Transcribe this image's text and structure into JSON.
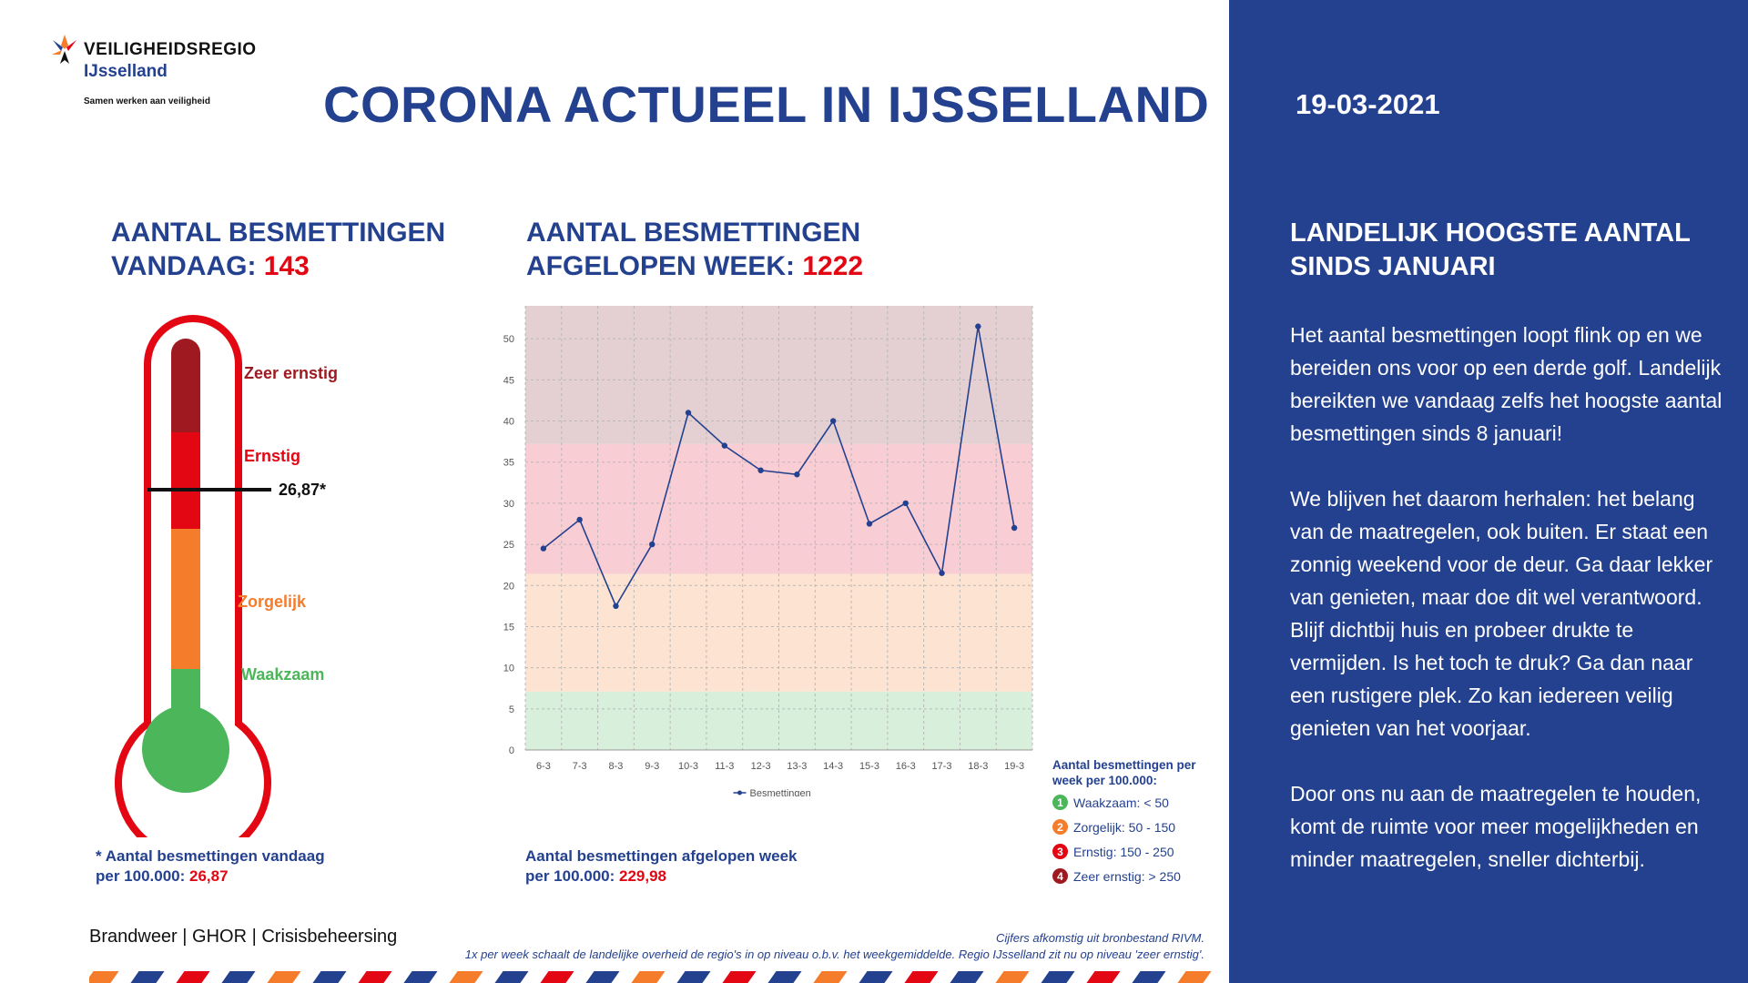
{
  "logo": {
    "title": "VEILIGHEIDSREGIO",
    "subtitle": "IJsselland",
    "tagline": "Samen werken aan veiligheid"
  },
  "page_title": "CORONA ACTUEEL IN IJSSELLAND",
  "today": {
    "heading_line1": "AANTAL BESMETTINGEN",
    "heading_line2_prefix": "VANDAAG: ",
    "value": "143"
  },
  "week": {
    "heading_line1": "AANTAL BESMETTINGEN",
    "heading_line2_prefix": "AFGELOPEN WEEK: ",
    "value": "1222"
  },
  "thermometer": {
    "levels": [
      "Zeer ernstig",
      "Ernstig",
      "Zorgelijk",
      "Waakzaam"
    ],
    "marker_label": "26,87*",
    "marker_value": 26.87,
    "colors": {
      "zeer_ernstig": "#9e1a20",
      "ernstig": "#e30613",
      "zorgelijk": "#f47c2a",
      "waakzaam": "#4cb65a"
    }
  },
  "today_note": {
    "line1": "* Aantal besmettingen vandaag",
    "line2_prefix": "per 100.000: ",
    "value": "26,87"
  },
  "week_note": {
    "line1": "Aantal besmettingen afgelopen week",
    "line2_prefix": "per 100.000: ",
    "value": "229,98"
  },
  "chart_data": {
    "type": "line",
    "categories": [
      "6-3",
      "7-3",
      "8-3",
      "9-3",
      "10-3",
      "11-3",
      "12-3",
      "13-3",
      "14-3",
      "15-3",
      "16-3",
      "17-3",
      "18-3",
      "19-3"
    ],
    "series": [
      {
        "name": "Besmettingen",
        "values": [
          24.5,
          28,
          17.5,
          25,
          41,
          37,
          34,
          33.5,
          40,
          27.5,
          30,
          21.5,
          51.5,
          27
        ]
      }
    ],
    "ylim": [
      0,
      54
    ],
    "yticks": [
      0,
      5,
      10,
      15,
      20,
      25,
      30,
      35,
      40,
      45,
      50
    ],
    "bands": [
      {
        "from": 0,
        "to": 7.1,
        "color": "#d8efdc"
      },
      {
        "from": 7.1,
        "to": 21.4,
        "color": "#fde3d1"
      },
      {
        "from": 21.4,
        "to": 37.2,
        "color": "#f9cdd4"
      },
      {
        "from": 37.2,
        "to": 54,
        "color": "#e4d0d3"
      }
    ],
    "line_color": "#24418f",
    "grid": true,
    "legend": "bottom"
  },
  "legend": {
    "title": "Aantal besmettingen per week per 100.000:",
    "items": [
      {
        "num": "1",
        "label": "Waakzaam: < 50",
        "color": "#4cb65a"
      },
      {
        "num": "2",
        "label": "Zorgelijk: 50 - 150",
        "color": "#f47c2a"
      },
      {
        "num": "3",
        "label": "Ernstig: 150 - 250",
        "color": "#e30613"
      },
      {
        "num": "4",
        "label": "Zeer ernstig: > 250",
        "color": "#9e1a20"
      }
    ]
  },
  "side": {
    "date": "19-03-2021",
    "title": "LANDELIJK HOOGSTE AANTAL SINDS JANUARI",
    "paragraphs": [
      "Het aantal besmettingen loopt flink op en we bereiden ons voor op een derde golf. Landelijk bereikten we vandaag zelfs het hoogste aantal besmettingen sinds 8 januari!",
      "We blijven het daarom herhalen: het belang van de maatregelen, ook buiten. Er staat een zonnig weekend voor de deur. Ga daar lekker van genieten, maar doe dit wel verantwoord. Blijf dichtbij huis en probeer drukte te vermijden. Is het toch te druk? Ga dan naar een rustigere plek. Zo kan iedereen veilig genieten van het voorjaar.",
      "Door ons nu aan de maatregelen te houden, komt de ruimte voor meer mogelijkheden en minder maatregelen, sneller dichterbij."
    ]
  },
  "footer": {
    "org": "Brandweer | GHOR | Crisisbeheersing",
    "source_line1": "Cijfers afkomstig uit bronbestand RIVM.",
    "source_line2": "1x per week schaalt de landelijke overheid de regio's in op niveau o.b.v. het weekgemiddelde. Regio IJsselland zit nu op niveau 'zeer ernstig'."
  }
}
